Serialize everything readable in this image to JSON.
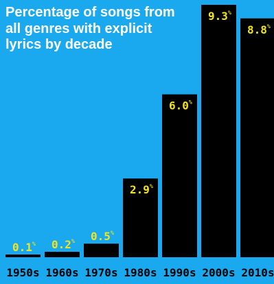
{
  "colors": {
    "background": "#1aa8ee",
    "bar": "#000000",
    "value_label": "#f2e51d",
    "title": "#ffffff",
    "tick": "#000000"
  },
  "chart_data": {
    "type": "bar",
    "title": "Percentage of songs from all genres with explicit lyrics by decade",
    "xlabel": "",
    "ylabel": "",
    "categories": [
      "1950s",
      "1960s",
      "1970s",
      "1980s",
      "1990s",
      "2000s",
      "2010s"
    ],
    "values": [
      0.1,
      0.2,
      0.5,
      2.9,
      6.0,
      9.3,
      8.8
    ],
    "value_labels": [
      "0.1",
      "0.2",
      "0.5",
      "2.9",
      "6.0",
      "9.3",
      "8.8"
    ],
    "value_suffix": "%",
    "ylim": [
      0,
      9.3
    ],
    "grid": false,
    "legend": "none"
  }
}
